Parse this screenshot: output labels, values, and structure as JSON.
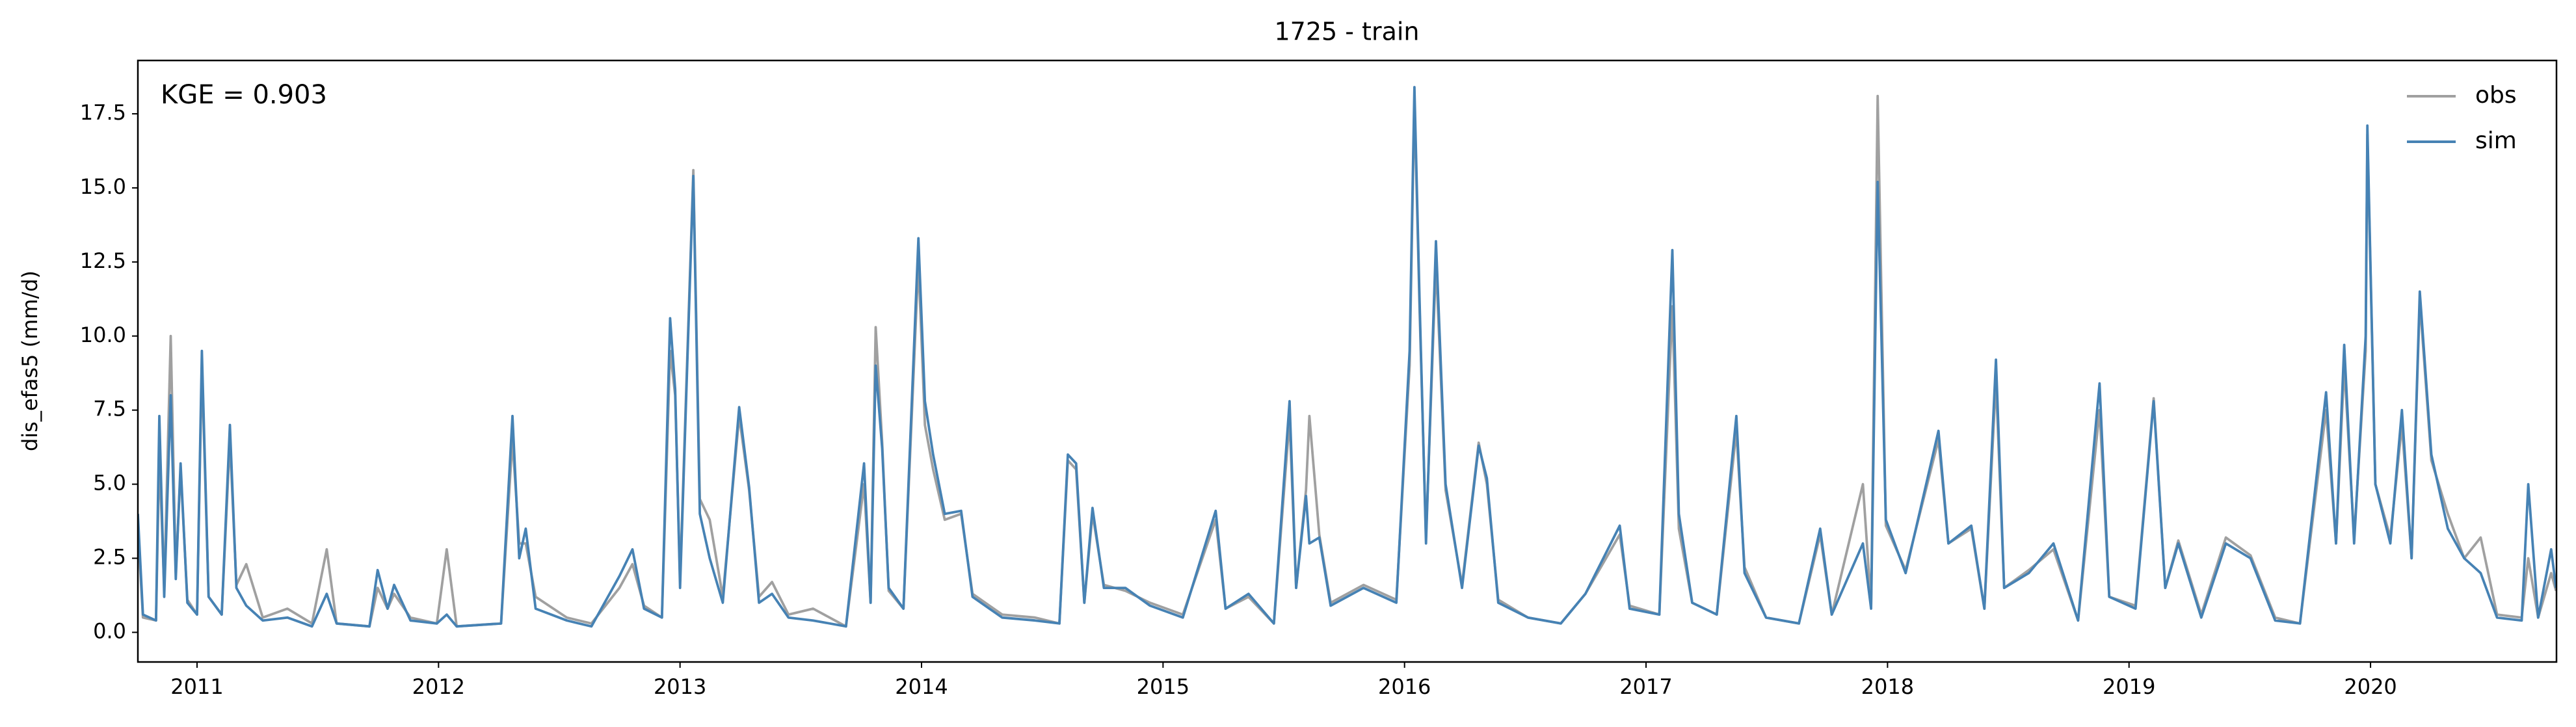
{
  "chart_data": {
    "type": "line",
    "title": "1725 - train",
    "annotation": "KGE = 0.903",
    "y_label": "dis_efas5 (mm/d)",
    "legend": "upper right",
    "grid": false,
    "xlim": [
      2010.755,
      2020.77
    ],
    "xticks": [
      2011,
      2012,
      2013,
      2014,
      2015,
      2016,
      2017,
      2018,
      2019,
      2020
    ],
    "ylim": [
      -1.0,
      19.3
    ],
    "yticks": [
      {
        "value": 0,
        "label": "0.0"
      },
      2.5,
      {
        "value": 5,
        "label": "5.0"
      },
      7.5,
      {
        "value": 10,
        "label": "10.0"
      },
      12.5,
      {
        "value": 15,
        "label": "15.0"
      },
      17.5
    ],
    "x": [
      2010.755,
      2010.776,
      2010.83,
      2010.844,
      2010.864,
      2010.891,
      2010.912,
      2010.932,
      2010.96,
      2011.0,
      2011.02,
      2011.048,
      2011.102,
      2011.136,
      2011.163,
      2011.204,
      2011.272,
      2011.374,
      2011.476,
      2011.537,
      2011.578,
      2011.714,
      2011.748,
      2011.789,
      2011.816,
      2011.884,
      2011.993,
      2012.034,
      2012.075,
      2012.259,
      2012.306,
      2012.334,
      2012.361,
      2012.402,
      2012.531,
      2012.633,
      2012.749,
      2012.803,
      2012.851,
      2012.925,
      2012.959,
      2012.98,
      2013.0,
      2013.055,
      2013.082,
      2013.123,
      2013.177,
      2013.245,
      2013.286,
      2013.327,
      2013.381,
      2013.449,
      2013.551,
      2013.687,
      2013.762,
      2013.789,
      2013.81,
      2013.837,
      2013.864,
      2013.925,
      2013.987,
      2014.014,
      2014.048,
      2014.096,
      2014.164,
      2014.211,
      2014.334,
      2014.47,
      2014.571,
      2014.606,
      2014.64,
      2014.674,
      2014.708,
      2014.755,
      2014.844,
      2014.946,
      2015.082,
      2015.218,
      2015.259,
      2015.354,
      2015.459,
      2015.524,
      2015.551,
      2015.592,
      2015.606,
      2015.647,
      2015.694,
      2015.83,
      2015.966,
      2016.021,
      2016.041,
      2016.062,
      2016.089,
      2016.13,
      2016.17,
      2016.238,
      2016.307,
      2016.341,
      2016.388,
      2016.511,
      2016.647,
      2016.749,
      2016.891,
      2016.932,
      2017.055,
      2017.109,
      2017.136,
      2017.191,
      2017.293,
      2017.374,
      2017.408,
      2017.497,
      2017.633,
      2017.721,
      2017.769,
      2017.898,
      2017.932,
      2017.959,
      2017.993,
      2018.075,
      2018.211,
      2018.252,
      2018.347,
      2018.401,
      2018.449,
      2018.483,
      2018.585,
      2018.687,
      2018.789,
      2018.878,
      2018.918,
      2019.027,
      2019.102,
      2019.15,
      2019.204,
      2019.299,
      2019.401,
      2019.503,
      2019.605,
      2019.708,
      2019.816,
      2019.857,
      2019.891,
      2019.932,
      2019.98,
      2019.987,
      2020.02,
      2020.082,
      2020.13,
      2020.17,
      2020.204,
      2020.252,
      2020.32,
      2020.388,
      2020.456,
      2020.524,
      2020.626,
      2020.653,
      2020.694,
      2020.748,
      2020.768
    ],
    "series": [
      {
        "name": "obs",
        "color": "#a0a0a0",
        "values": [
          3.5,
          0.5,
          0.4,
          6.0,
          1.5,
          10.0,
          2.0,
          5.5,
          1.1,
          0.6,
          9.0,
          1.2,
          0.6,
          6.5,
          1.6,
          2.3,
          0.5,
          0.8,
          0.3,
          2.8,
          0.3,
          0.2,
          1.5,
          0.8,
          1.3,
          0.5,
          0.3,
          2.8,
          0.2,
          0.3,
          6.5,
          3.0,
          3.0,
          1.2,
          0.5,
          0.3,
          1.5,
          2.3,
          0.9,
          0.5,
          9.5,
          8.0,
          1.8,
          15.6,
          4.5,
          3.8,
          1.2,
          7.3,
          4.8,
          1.2,
          1.7,
          0.6,
          0.8,
          0.2,
          5.0,
          1.0,
          10.3,
          6.4,
          1.4,
          0.8,
          12.5,
          7.0,
          5.5,
          3.8,
          4.0,
          1.3,
          0.6,
          0.5,
          0.3,
          5.8,
          5.5,
          1.0,
          4.0,
          1.6,
          1.4,
          1.0,
          0.6,
          3.8,
          0.8,
          1.2,
          0.3,
          7.2,
          1.5,
          4.8,
          7.3,
          3.3,
          1.0,
          1.6,
          1.1,
          9.0,
          18.0,
          11.0,
          3.2,
          12.5,
          4.8,
          1.6,
          6.4,
          5.0,
          1.1,
          0.5,
          0.3,
          1.3,
          3.3,
          0.9,
          0.6,
          11.0,
          3.5,
          1.0,
          0.6,
          6.8,
          2.2,
          0.5,
          0.3,
          3.3,
          0.6,
          5.0,
          0.9,
          18.1,
          3.6,
          2.1,
          6.5,
          3.0,
          3.5,
          0.8,
          8.5,
          1.5,
          2.1,
          2.8,
          0.4,
          7.5,
          1.2,
          0.9,
          7.9,
          1.5,
          3.1,
          0.6,
          3.2,
          2.6,
          0.5,
          0.3,
          7.5,
          3.0,
          9.0,
          3.2,
          9.5,
          16.8,
          5.0,
          3.2,
          7.0,
          2.5,
          11.2,
          5.8,
          4.0,
          2.5,
          3.2,
          0.6,
          0.5,
          2.5,
          0.5,
          2.0,
          1.4
        ]
      },
      {
        "name": "sim",
        "color": "#4682b4",
        "values": [
          4.0,
          0.6,
          0.4,
          7.3,
          1.2,
          8.0,
          1.8,
          5.7,
          1.0,
          0.6,
          9.5,
          1.2,
          0.6,
          7.0,
          1.5,
          0.9,
          0.4,
          0.5,
          0.2,
          1.3,
          0.3,
          0.2,
          2.1,
          0.8,
          1.6,
          0.4,
          0.3,
          0.6,
          0.2,
          0.3,
          7.3,
          2.5,
          3.5,
          0.8,
          0.4,
          0.2,
          1.9,
          2.8,
          0.8,
          0.5,
          10.6,
          8.2,
          1.5,
          15.4,
          4.0,
          2.5,
          1.0,
          7.6,
          4.9,
          1.0,
          1.3,
          0.5,
          0.4,
          0.2,
          5.7,
          1.0,
          9.0,
          6.2,
          1.5,
          0.8,
          13.3,
          7.8,
          6.0,
          4.0,
          4.1,
          1.2,
          0.5,
          0.4,
          0.3,
          6.0,
          5.7,
          1.0,
          4.2,
          1.5,
          1.5,
          0.9,
          0.5,
          4.1,
          0.8,
          1.3,
          0.3,
          7.8,
          1.5,
          4.6,
          3.0,
          3.2,
          0.9,
          1.5,
          1.0,
          9.5,
          18.4,
          11.3,
          3.0,
          13.2,
          5.0,
          1.5,
          6.3,
          5.2,
          1.0,
          0.5,
          0.3,
          1.3,
          3.6,
          0.8,
          0.6,
          12.9,
          4.0,
          1.0,
          0.6,
          7.3,
          2.0,
          0.5,
          0.3,
          3.5,
          0.6,
          3.0,
          0.8,
          15.2,
          3.8,
          2.0,
          6.8,
          3.0,
          3.6,
          0.8,
          9.2,
          1.5,
          2.0,
          3.0,
          0.4,
          8.4,
          1.2,
          0.8,
          7.8,
          1.5,
          3.0,
          0.5,
          3.0,
          2.5,
          0.4,
          0.3,
          8.1,
          3.0,
          9.7,
          3.0,
          10.0,
          17.1,
          5.0,
          3.0,
          7.5,
          2.5,
          11.5,
          6.0,
          3.5,
          2.5,
          2.0,
          0.5,
          0.4,
          5.0,
          0.5,
          2.8,
          1.5
        ]
      }
    ]
  }
}
